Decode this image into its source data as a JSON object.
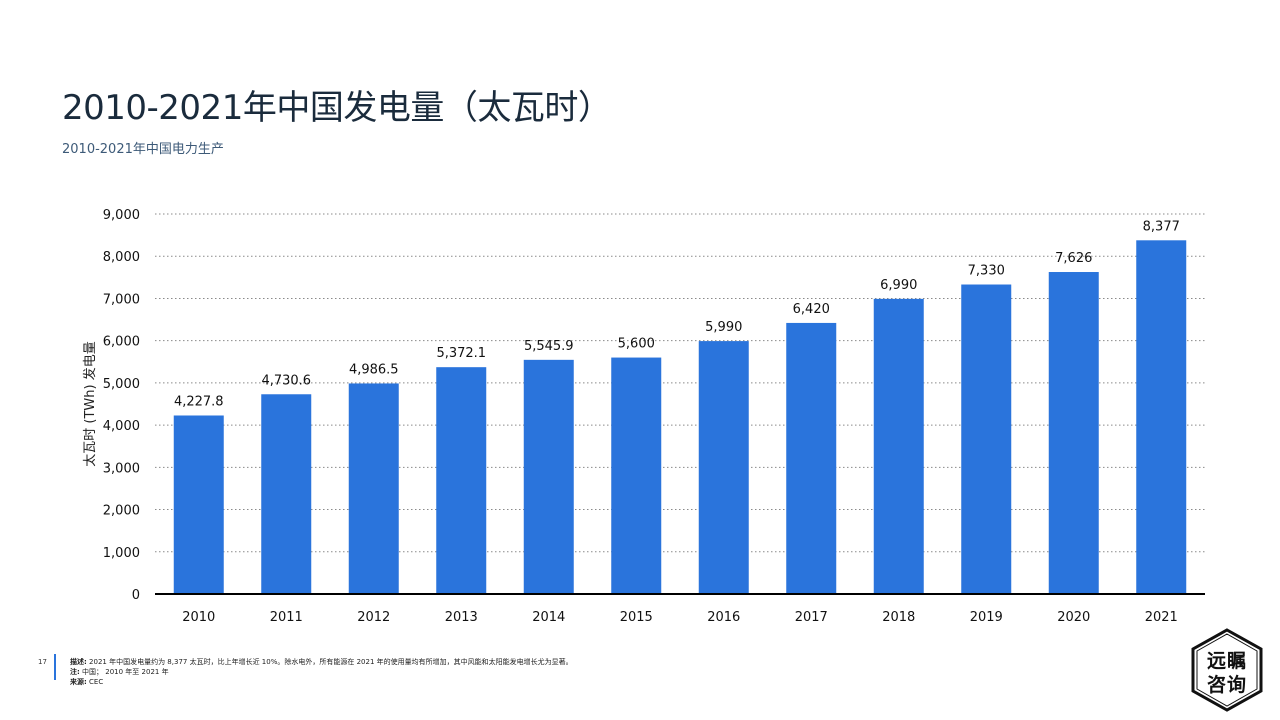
{
  "title": "2010-2021年中国发电量（太瓦时）",
  "subtitle": "2010-2021年中国电力生产",
  "page_number": "17",
  "footer": {
    "desc_label": "描述:",
    "desc_text": "2021 年中国发电量约为 8,377 太瓦时，比上年增长近 10%。除水电外，所有能源在 2021 年的使用量均有所增加，其中风能和太阳能发电增长尤为显著。",
    "note_label": "注:",
    "note_text": "中国；  2010 年至 2021 年",
    "source_label": "来源:",
    "source_text": "CEC"
  },
  "logo": {
    "line1": "远瞩",
    "line2": "咨询"
  },
  "colors": {
    "bar": "#2a74dc",
    "grid": "#8a8a8a",
    "axis": "#000000"
  },
  "chart_data": {
    "type": "bar",
    "categories": [
      "2010",
      "2011",
      "2012",
      "2013",
      "2014",
      "2015",
      "2016",
      "2017",
      "2018",
      "2019",
      "2020",
      "2021"
    ],
    "values": [
      4227.8,
      4730.6,
      4986.5,
      5372.1,
      5545.9,
      5600,
      5990,
      6420,
      6990,
      7330,
      7626,
      8377
    ],
    "value_labels": [
      "4,227.8",
      "4,730.6",
      "4,986.5",
      "5,372.1",
      "5,545.9",
      "5,600",
      "5,990",
      "6,420",
      "6,990",
      "7,330",
      "7,626",
      "8,377"
    ],
    "ylabel": "太瓦时 (TWh) 发电量",
    "ylim": [
      0,
      9000
    ],
    "yticks": [
      0,
      1000,
      2000,
      3000,
      4000,
      5000,
      6000,
      7000,
      8000,
      9000
    ],
    "ytick_labels": [
      "0",
      "1,000",
      "2,000",
      "3,000",
      "4,000",
      "5,000",
      "6,000",
      "7,000",
      "8,000",
      "9,000"
    ],
    "grid": true
  }
}
